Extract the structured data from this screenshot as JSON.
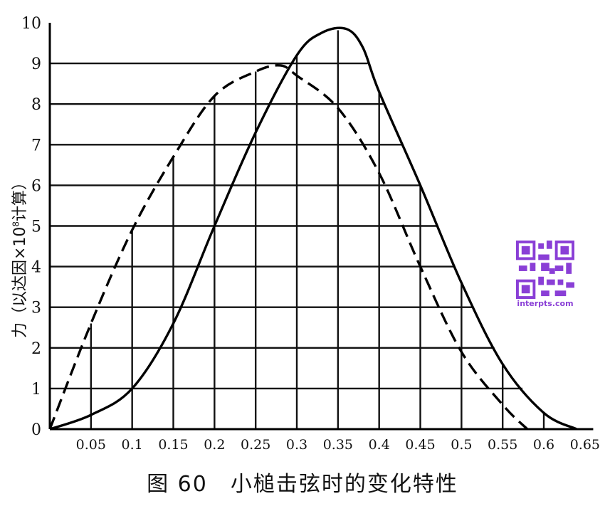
{
  "caption": "图 60　小槌击弦时的变化特性",
  "chart_data": {
    "type": "line",
    "ylabel": {
      "prefix": "力（以达因×10",
      "exponent": "8",
      "suffix": "计算）"
    },
    "xlabel": "",
    "xlim": [
      0,
      0.67
    ],
    "ylim": [
      0,
      10
    ],
    "x_ticks": [
      "0.05",
      "0.1",
      "0.15",
      "0.2",
      "0.25",
      "0.3",
      "0.35",
      "0.4",
      "0.45",
      "0.5",
      "0.55",
      "0.6",
      "0.65"
    ],
    "x_tick_values": [
      0.05,
      0.1,
      0.15,
      0.2,
      0.25,
      0.3,
      0.35,
      0.4,
      0.45,
      0.5,
      0.55,
      0.6,
      0.65
    ],
    "y_ticks": [
      "0",
      "1",
      "2",
      "3",
      "4",
      "5",
      "6",
      "7",
      "8",
      "9",
      "10"
    ],
    "y_tick_values": [
      0,
      1,
      2,
      3,
      4,
      5,
      6,
      7,
      8,
      9,
      10
    ],
    "grid": true,
    "series": [
      {
        "style": "solid",
        "points": [
          [
            0,
            0
          ],
          [
            0.05,
            0.35
          ],
          [
            0.1,
            1.0
          ],
          [
            0.15,
            2.6
          ],
          [
            0.2,
            5.0
          ],
          [
            0.25,
            7.3
          ],
          [
            0.3,
            9.2
          ],
          [
            0.33,
            9.75
          ],
          [
            0.36,
            9.85
          ],
          [
            0.38,
            9.4
          ],
          [
            0.4,
            8.3
          ],
          [
            0.45,
            6.0
          ],
          [
            0.5,
            3.6
          ],
          [
            0.55,
            1.6
          ],
          [
            0.6,
            0.4
          ],
          [
            0.64,
            0
          ]
        ]
      },
      {
        "style": "dashed",
        "points": [
          [
            0,
            0
          ],
          [
            0.05,
            2.6
          ],
          [
            0.1,
            4.9
          ],
          [
            0.15,
            6.7
          ],
          [
            0.2,
            8.2
          ],
          [
            0.25,
            8.8
          ],
          [
            0.28,
            8.95
          ],
          [
            0.3,
            8.7
          ],
          [
            0.35,
            7.9
          ],
          [
            0.4,
            6.3
          ],
          [
            0.45,
            4.0
          ],
          [
            0.5,
            1.9
          ],
          [
            0.55,
            0.6
          ],
          [
            0.58,
            0
          ]
        ]
      }
    ]
  },
  "watermark": {
    "text": "interpts.com",
    "color": "#8a3fd6"
  }
}
